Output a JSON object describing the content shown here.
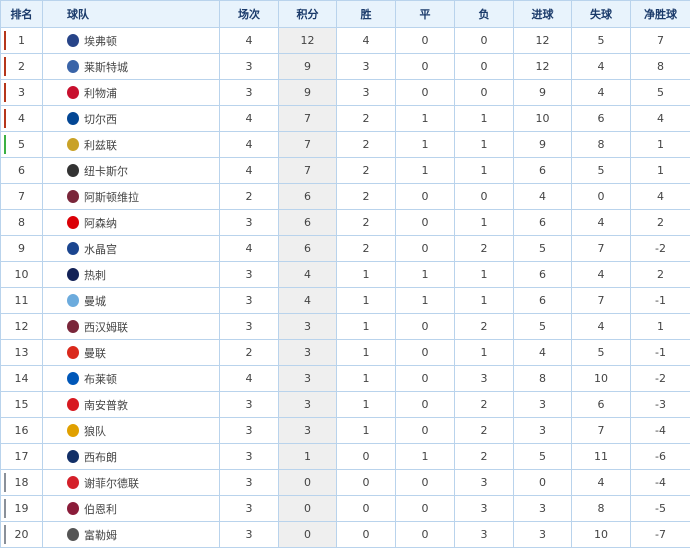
{
  "headers": [
    "排名",
    "球队",
    "场次",
    "积分",
    "胜",
    "平",
    "负",
    "进球",
    "失球",
    "净胜球"
  ],
  "marker_colors": {
    "champions": "#b5361b",
    "europa": "#3cb043",
    "relegation": "#8a9099"
  },
  "rows": [
    {
      "rank": "1",
      "team": "埃弗顿",
      "icon": "everton-crest-icon",
      "color": "#274488",
      "played": "4",
      "points": "12",
      "w": "4",
      "d": "0",
      "l": "0",
      "gf": "12",
      "ga": "5",
      "gd": "7",
      "zone": "champions"
    },
    {
      "rank": "2",
      "team": "莱斯特城",
      "icon": "leicester-crest-icon",
      "color": "#3a64a8",
      "played": "3",
      "points": "9",
      "w": "3",
      "d": "0",
      "l": "0",
      "gf": "12",
      "ga": "4",
      "gd": "8",
      "zone": "champions"
    },
    {
      "rank": "3",
      "team": "利物浦",
      "icon": "liverpool-crest-icon",
      "color": "#c8102e",
      "played": "3",
      "points": "9",
      "w": "3",
      "d": "0",
      "l": "0",
      "gf": "9",
      "ga": "4",
      "gd": "5",
      "zone": "champions"
    },
    {
      "rank": "4",
      "team": "切尔西",
      "icon": "chelsea-crest-icon",
      "color": "#034694",
      "played": "4",
      "points": "7",
      "w": "2",
      "d": "1",
      "l": "1",
      "gf": "10",
      "ga": "6",
      "gd": "4",
      "zone": "champions"
    },
    {
      "rank": "5",
      "team": "利兹联",
      "icon": "leeds-crest-icon",
      "color": "#c9a227",
      "played": "4",
      "points": "7",
      "w": "2",
      "d": "1",
      "l": "1",
      "gf": "9",
      "ga": "8",
      "gd": "1",
      "zone": "europa"
    },
    {
      "rank": "6",
      "team": "纽卡斯尔",
      "icon": "newcastle-crest-icon",
      "color": "#333333",
      "played": "4",
      "points": "7",
      "w": "2",
      "d": "1",
      "l": "1",
      "gf": "6",
      "ga": "5",
      "gd": "1",
      "zone": ""
    },
    {
      "rank": "7",
      "team": "阿斯顿维拉",
      "icon": "aston-villa-crest-icon",
      "color": "#7a263a",
      "played": "2",
      "points": "6",
      "w": "2",
      "d": "0",
      "l": "0",
      "gf": "4",
      "ga": "0",
      "gd": "4",
      "zone": ""
    },
    {
      "rank": "8",
      "team": "阿森纳",
      "icon": "arsenal-crest-icon",
      "color": "#db0007",
      "played": "3",
      "points": "6",
      "w": "2",
      "d": "0",
      "l": "1",
      "gf": "6",
      "ga": "4",
      "gd": "2",
      "zone": ""
    },
    {
      "rank": "9",
      "team": "水晶宫",
      "icon": "crystal-palace-crest-icon",
      "color": "#1b458f",
      "played": "4",
      "points": "6",
      "w": "2",
      "d": "0",
      "l": "2",
      "gf": "5",
      "ga": "7",
      "gd": "-2",
      "zone": ""
    },
    {
      "rank": "10",
      "team": "热刺",
      "icon": "tottenham-crest-icon",
      "color": "#132257",
      "played": "3",
      "points": "4",
      "w": "1",
      "d": "1",
      "l": "1",
      "gf": "6",
      "ga": "4",
      "gd": "2",
      "zone": ""
    },
    {
      "rank": "11",
      "team": "曼城",
      "icon": "man-city-crest-icon",
      "color": "#6cabdd",
      "played": "3",
      "points": "4",
      "w": "1",
      "d": "1",
      "l": "1",
      "gf": "6",
      "ga": "7",
      "gd": "-1",
      "zone": ""
    },
    {
      "rank": "12",
      "team": "西汉姆联",
      "icon": "west-ham-crest-icon",
      "color": "#7a263a",
      "played": "3",
      "points": "3",
      "w": "1",
      "d": "0",
      "l": "2",
      "gf": "5",
      "ga": "4",
      "gd": "1",
      "zone": ""
    },
    {
      "rank": "13",
      "team": "曼联",
      "icon": "man-united-crest-icon",
      "color": "#da291c",
      "played": "2",
      "points": "3",
      "w": "1",
      "d": "0",
      "l": "1",
      "gf": "4",
      "ga": "5",
      "gd": "-1",
      "zone": ""
    },
    {
      "rank": "14",
      "team": "布莱顿",
      "icon": "brighton-crest-icon",
      "color": "#0057b8",
      "played": "4",
      "points": "3",
      "w": "1",
      "d": "0",
      "l": "3",
      "gf": "8",
      "ga": "10",
      "gd": "-2",
      "zone": ""
    },
    {
      "rank": "15",
      "team": "南安普敦",
      "icon": "southampton-crest-icon",
      "color": "#d71920",
      "played": "3",
      "points": "3",
      "w": "1",
      "d": "0",
      "l": "2",
      "gf": "3",
      "ga": "6",
      "gd": "-3",
      "zone": ""
    },
    {
      "rank": "16",
      "team": "狼队",
      "icon": "wolves-crest-icon",
      "color": "#e0a000",
      "played": "3",
      "points": "3",
      "w": "1",
      "d": "0",
      "l": "2",
      "gf": "3",
      "ga": "7",
      "gd": "-4",
      "zone": ""
    },
    {
      "rank": "17",
      "team": "西布朗",
      "icon": "west-brom-crest-icon",
      "color": "#122f67",
      "played": "3",
      "points": "1",
      "w": "0",
      "d": "1",
      "l": "2",
      "gf": "5",
      "ga": "11",
      "gd": "-6",
      "zone": ""
    },
    {
      "rank": "18",
      "team": "谢菲尔德联",
      "icon": "sheffield-united-crest-icon",
      "color": "#d4202a",
      "played": "3",
      "points": "0",
      "w": "0",
      "d": "0",
      "l": "3",
      "gf": "0",
      "ga": "4",
      "gd": "-4",
      "zone": "relegation"
    },
    {
      "rank": "19",
      "team": "伯恩利",
      "icon": "burnley-crest-icon",
      "color": "#8a1c3a",
      "played": "3",
      "points": "0",
      "w": "0",
      "d": "0",
      "l": "3",
      "gf": "3",
      "ga": "8",
      "gd": "-5",
      "zone": "relegation"
    },
    {
      "rank": "20",
      "team": "富勒姆",
      "icon": "fulham-crest-icon",
      "color": "#555555",
      "played": "3",
      "points": "0",
      "w": "0",
      "d": "0",
      "l": "3",
      "gf": "3",
      "ga": "10",
      "gd": "-7",
      "zone": "relegation"
    }
  ]
}
